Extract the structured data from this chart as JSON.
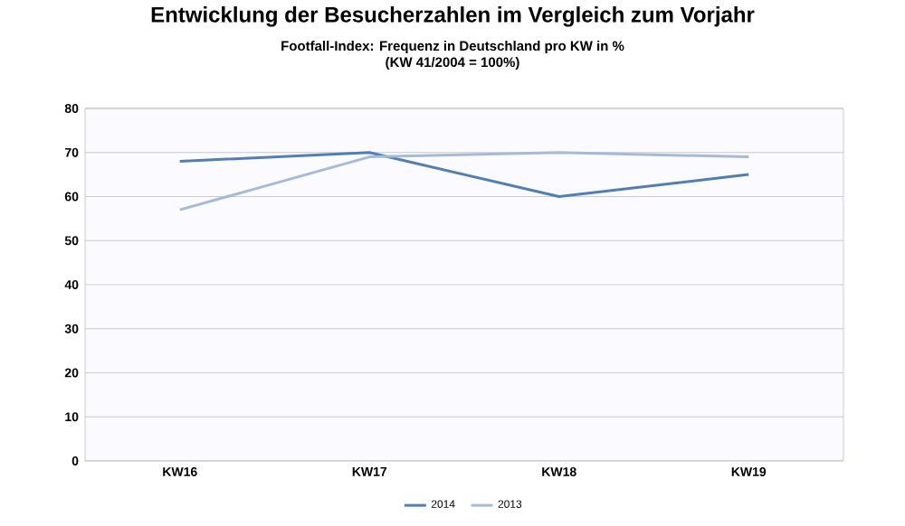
{
  "chart_data": {
    "type": "line",
    "title": "Entwicklung der Besucherzahlen im Vergleich zum Vorjahr",
    "subtitle": "Footfall-Index: Frequenz in Deutschland pro KW in %\n(KW 41/2004 = 100%)",
    "categories": [
      "KW16",
      "KW17",
      "KW18",
      "KW19"
    ],
    "series": [
      {
        "name": "2014",
        "color": "#4f7fb8",
        "values": [
          68,
          70,
          60,
          65
        ]
      },
      {
        "name": "2013",
        "color": "#a3bbd9",
        "values": [
          57,
          69,
          70,
          69
        ]
      }
    ],
    "ylim": [
      0,
      80
    ],
    "yticks": [
      0,
      10,
      20,
      30,
      40,
      50,
      60,
      70,
      80
    ],
    "grid": "y",
    "legend": "bottom",
    "marker": "none",
    "line_style": "solid"
  }
}
